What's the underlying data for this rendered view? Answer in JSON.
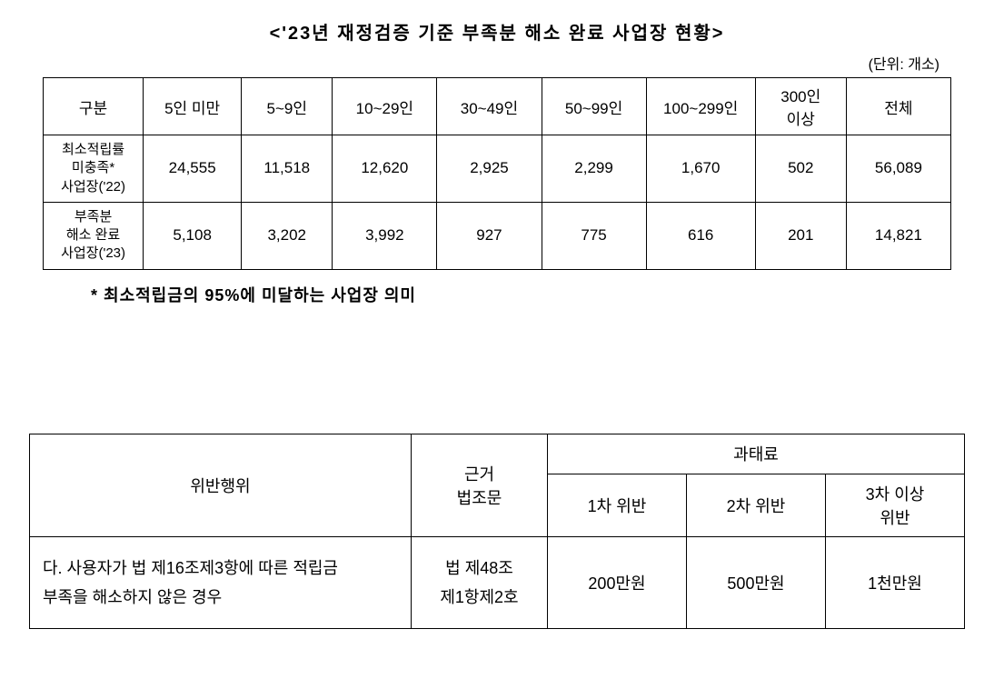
{
  "title": "<'23년 재정검증 기준 부족분 해소 완료 사업장 현황>",
  "unit": "(단위: 개소)",
  "table1": {
    "headers": [
      "구분",
      "5인 미만",
      "5~9인",
      "10~29인",
      "30~49인",
      "50~99인",
      "100~299인",
      "300인\n이상",
      "전체"
    ],
    "rows": [
      {
        "label": "최소적립률\n미충족*\n사업장('22)",
        "values": [
          "24,555",
          "11,518",
          "12,620",
          "2,925",
          "2,299",
          "1,670",
          "502",
          "56,089"
        ]
      },
      {
        "label": "부족분\n해소 완료\n사업장('23)",
        "values": [
          "5,108",
          "3,202",
          "3,992",
          "927",
          "775",
          "616",
          "201",
          "14,821"
        ]
      }
    ]
  },
  "footnote": "* 최소적립금의 95%에 미달하는 사업장 의미",
  "table2": {
    "headers": {
      "violation": "위반행위",
      "basis": "근거\n법조문",
      "penalty_group": "과태료",
      "penalty1": "1차 위반",
      "penalty2": "2차 위반",
      "penalty3": "3차 이상\n위반"
    },
    "row": {
      "violation": "다. 사용자가 법 제16조제3항에 따른 적립금\n부족을 해소하지 않은 경우",
      "basis": "법 제48조\n제1항제2호",
      "penalty1": "200만원",
      "penalty2": "500만원",
      "penalty3": "1천만원"
    }
  }
}
